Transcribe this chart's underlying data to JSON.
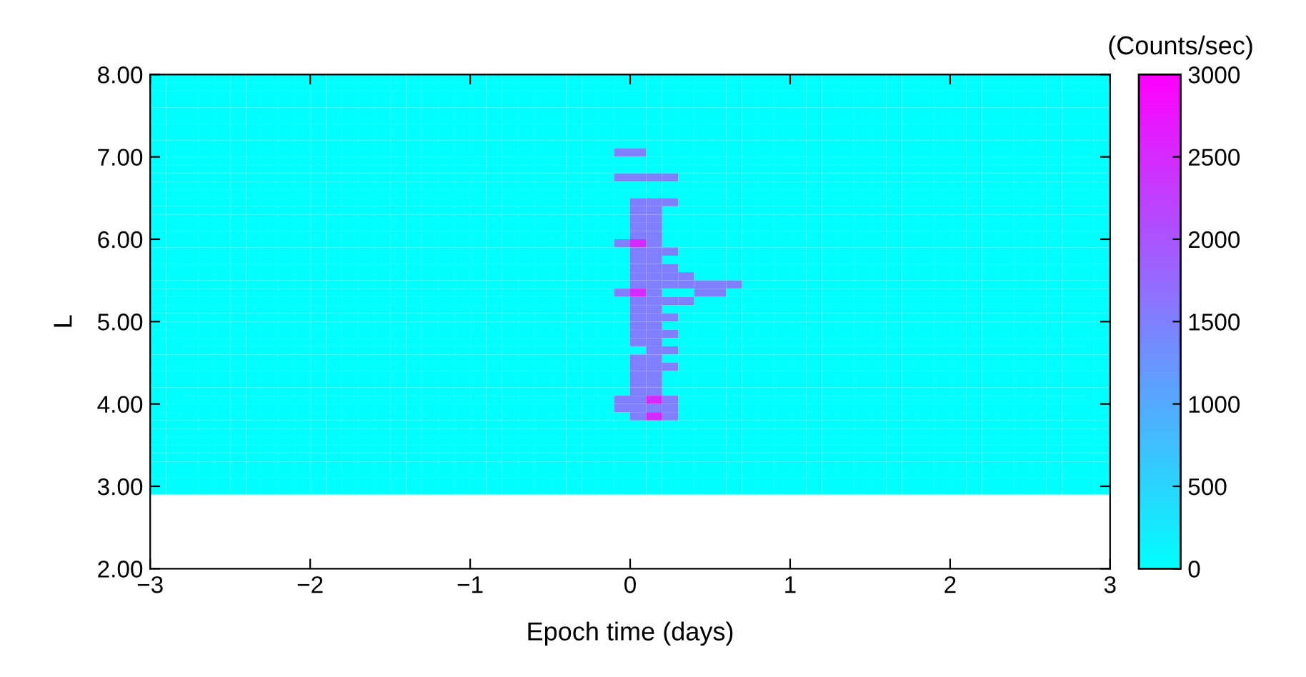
{
  "chart_data": {
    "type": "heatmap",
    "xlabel": "Epoch time (days)",
    "ylabel": "L",
    "clabel": "(Counts/sec)",
    "xlim": [
      -3,
      3
    ],
    "ylim": [
      2,
      8
    ],
    "xticks": [
      {
        "value": -3,
        "label": "−3"
      },
      {
        "value": -2,
        "label": "−2"
      },
      {
        "value": -1,
        "label": "−1"
      },
      0,
      1,
      2,
      3
    ],
    "yticks": [
      {
        "value": 2,
        "label": "2.00"
      },
      {
        "value": 3,
        "label": "3.00"
      },
      {
        "value": 4,
        "label": "4.00"
      },
      {
        "value": 5,
        "label": "5.00"
      },
      {
        "value": 6,
        "label": "6.00"
      },
      {
        "value": 7,
        "label": "7.00"
      },
      {
        "value": 8,
        "label": "8.00"
      }
    ],
    "clim": [
      0,
      3000
    ],
    "cticks": [
      0,
      500,
      1000,
      1500,
      2000,
      2500,
      3000
    ],
    "grid": false,
    "x": [
      -2.95,
      -2.85,
      -2.75,
      -2.65,
      -2.55,
      -2.45,
      -2.35,
      -2.25,
      -2.15,
      -2.05,
      -1.95,
      -1.85,
      -1.75,
      -1.65,
      -1.55,
      -1.45,
      -1.35,
      -1.25,
      -1.15,
      -1.05,
      -0.95,
      -0.85,
      -0.75,
      -0.65,
      -0.55,
      -0.45,
      -0.35,
      -0.25,
      -0.15,
      -0.05,
      0.05,
      0.15,
      0.25,
      0.35,
      0.45,
      0.55,
      0.65,
      0.75,
      0.85,
      0.95,
      1.05,
      1.15,
      1.25,
      1.35,
      1.45,
      1.55,
      1.65,
      1.75,
      1.85,
      1.95,
      2.05,
      2.15,
      2.25,
      2.35,
      2.45,
      2.55,
      2.65,
      2.75,
      2.85,
      2.95
    ],
    "y": [
      7.95,
      7.85,
      7.75,
      7.65,
      7.55,
      7.45,
      7.35,
      7.25,
      7.15,
      7.05,
      6.95,
      6.85,
      6.75,
      6.65,
      6.55,
      6.45,
      6.35,
      6.25,
      6.15,
      6.05,
      5.95,
      5.85,
      5.75,
      5.65,
      5.55,
      5.45,
      5.35,
      5.25,
      5.15,
      5.05,
      4.95,
      4.85,
      4.75,
      4.65,
      4.55,
      4.45,
      4.35,
      4.25,
      4.15,
      4.05,
      3.95,
      3.85,
      3.75,
      3.65,
      3.55,
      3.45,
      3.35,
      3.25,
      3.15,
      3.05,
      2.95
    ],
    "cells": [
      [
        0,
        0,
        0,
        0,
        0,
        0,
        0,
        0,
        0,
        0,
        0,
        0,
        0,
        0,
        0,
        0,
        0,
        0,
        0,
        0,
        0,
        0,
        0,
        0,
        0,
        0,
        0,
        0,
        0,
        0,
        0,
        0,
        0,
        0,
        0,
        0,
        0,
        0,
        0,
        0,
        0,
        0,
        0,
        0,
        0,
        0,
        0,
        0,
        0,
        0,
        0,
        0,
        0,
        0,
        0,
        0,
        0,
        0,
        0,
        0
      ],
      [
        0,
        0,
        0,
        0,
        0,
        0,
        0,
        0,
        0,
        0,
        0,
        0,
        0,
        0,
        0,
        0,
        0,
        0,
        0,
        0,
        0,
        0,
        0,
        0,
        0,
        0,
        0,
        0,
        0,
        0,
        0,
        0,
        0,
        0,
        0,
        0,
        0,
        0,
        0,
        0,
        0,
        0,
        0,
        0,
        0,
        0,
        0,
        0,
        0,
        0,
        0,
        0,
        0,
        0,
        0,
        0,
        0,
        0,
        0,
        0
      ],
      [
        0,
        0,
        0,
        0,
        0,
        0,
        0,
        0,
        0,
        0,
        0,
        0,
        0,
        0,
        0,
        0,
        0,
        0,
        0,
        0,
        0,
        0,
        0,
        0,
        0,
        0,
        0,
        0,
        0,
        0,
        0,
        0,
        0,
        0,
        0,
        0,
        0,
        0,
        0,
        0,
        0,
        0,
        0,
        0,
        0,
        0,
        0,
        0,
        0,
        0,
        0,
        0,
        0,
        0,
        0,
        0,
        0,
        0,
        0,
        0
      ],
      [
        0,
        0,
        0,
        0,
        0,
        0,
        0,
        0,
        0,
        0,
        0,
        0,
        0,
        0,
        0,
        0,
        0,
        0,
        0,
        0,
        0,
        0,
        0,
        0,
        0,
        0,
        0,
        0,
        0,
        0,
        0,
        0,
        0,
        0,
        0,
        0,
        0,
        0,
        0,
        0,
        0,
        0,
        0,
        0,
        0,
        0,
        0,
        0,
        0,
        0,
        0,
        0,
        0,
        0,
        0,
        0,
        0,
        0,
        0,
        0
      ],
      [
        0,
        0,
        0,
        0,
        0,
        0,
        0,
        0,
        0,
        0,
        0,
        0,
        0,
        0,
        0,
        0,
        0,
        0,
        0,
        0,
        0,
        0,
        0,
        0,
        0,
        0,
        0,
        0,
        0,
        0,
        0,
        0,
        0,
        0,
        0,
        0,
        0,
        0,
        0,
        0,
        0,
        0,
        0,
        0,
        0,
        0,
        0,
        0,
        0,
        0,
        0,
        0,
        0,
        0,
        0,
        0,
        0,
        0,
        0,
        0
      ],
      [
        0,
        0,
        0,
        0,
        0,
        0,
        0,
        0,
        0,
        0,
        0,
        0,
        0,
        0,
        0,
        0,
        0,
        0,
        0,
        0,
        0,
        0,
        0,
        0,
        0,
        0,
        0,
        0,
        0,
        0,
        0,
        0,
        0,
        0,
        0,
        0,
        0,
        0,
        0,
        0,
        0,
        0,
        0,
        0,
        0,
        0,
        0,
        0,
        0,
        0,
        0,
        0,
        0,
        0,
        0,
        0,
        0,
        0,
        0,
        0
      ],
      [
        0,
        0,
        0,
        0,
        0,
        0,
        0,
        0,
        0,
        0,
        0,
        0,
        0,
        0,
        0,
        0,
        0,
        0,
        0,
        0,
        0,
        0,
        0,
        0,
        0,
        0,
        0,
        0,
        0,
        0,
        0,
        0,
        0,
        0,
        0,
        0,
        0,
        0,
        0,
        0,
        0,
        0,
        0,
        0,
        0,
        0,
        0,
        0,
        0,
        0,
        0,
        0,
        0,
        0,
        0,
        0,
        0,
        0,
        0,
        0
      ],
      [
        0,
        0,
        0,
        0,
        0,
        0,
        0,
        0,
        0,
        0,
        0,
        0,
        0,
        0,
        0,
        0,
        0,
        0,
        0,
        0,
        0,
        0,
        0,
        0,
        0,
        0,
        0,
        0,
        0,
        0,
        0,
        0,
        0,
        0,
        0,
        0,
        0,
        0,
        0,
        0,
        0,
        0,
        0,
        0,
        0,
        0,
        0,
        0,
        0,
        0,
        0,
        0,
        0,
        0,
        0,
        0,
        0,
        0,
        0,
        0
      ],
      [
        0,
        0,
        0,
        0,
        0,
        0,
        0,
        0,
        0,
        0,
        0,
        0,
        0,
        0,
        0,
        0,
        0,
        0,
        0,
        0,
        0,
        0,
        0,
        0,
        0,
        0,
        0,
        0,
        0,
        0,
        0,
        0,
        0,
        0,
        0,
        0,
        0,
        0,
        0,
        0,
        0,
        0,
        0,
        0,
        0,
        0,
        0,
        0,
        0,
        0,
        0,
        0,
        0,
        0,
        0,
        0,
        0,
        0,
        0,
        0
      ],
      [
        0,
        0,
        0,
        0,
        0,
        0,
        0,
        0,
        0,
        0,
        0,
        0,
        0,
        0,
        0,
        0,
        0,
        0,
        0,
        0,
        0,
        0,
        0,
        0,
        0,
        0,
        0,
        0,
        0,
        1500,
        1500,
        0,
        0,
        0,
        0,
        0,
        0,
        0,
        0,
        0,
        0,
        0,
        0,
        0,
        0,
        0,
        0,
        0,
        0,
        0,
        0,
        0,
        0,
        0,
        0,
        0,
        0,
        0,
        0,
        0
      ],
      [
        0,
        0,
        0,
        0,
        0,
        0,
        0,
        0,
        0,
        0,
        0,
        0,
        0,
        0,
        0,
        0,
        0,
        0,
        0,
        0,
        0,
        0,
        0,
        0,
        0,
        0,
        0,
        0,
        0,
        0,
        0,
        0,
        0,
        0,
        0,
        0,
        0,
        0,
        0,
        0,
        0,
        0,
        0,
        0,
        0,
        0,
        0,
        0,
        0,
        0,
        0,
        0,
        0,
        0,
        0,
        0,
        0,
        0,
        0,
        0
      ],
      [
        0,
        0,
        0,
        0,
        0,
        0,
        0,
        0,
        0,
        0,
        0,
        0,
        0,
        0,
        0,
        0,
        0,
        0,
        0,
        0,
        0,
        0,
        0,
        0,
        0,
        0,
        0,
        0,
        0,
        0,
        0,
        0,
        0,
        0,
        0,
        0,
        0,
        0,
        0,
        0,
        0,
        0,
        0,
        0,
        0,
        0,
        0,
        0,
        0,
        0,
        0,
        0,
        0,
        0,
        0,
        0,
        0,
        0,
        0,
        0
      ],
      [
        0,
        0,
        0,
        0,
        0,
        0,
        0,
        0,
        0,
        0,
        0,
        0,
        0,
        0,
        0,
        0,
        0,
        0,
        0,
        0,
        0,
        0,
        0,
        0,
        0,
        0,
        0,
        0,
        0,
        1500,
        1500,
        1500,
        1500,
        0,
        0,
        0,
        0,
        0,
        0,
        0,
        0,
        0,
        0,
        0,
        0,
        0,
        0,
        0,
        0,
        0,
        0,
        0,
        0,
        0,
        0,
        0,
        0,
        0,
        0,
        0
      ],
      [
        0,
        0,
        0,
        0,
        0,
        0,
        0,
        0,
        0,
        0,
        0,
        0,
        0,
        0,
        0,
        0,
        0,
        0,
        0,
        0,
        0,
        0,
        0,
        0,
        0,
        0,
        0,
        0,
        0,
        0,
        0,
        0,
        0,
        0,
        0,
        0,
        0,
        0,
        0,
        0,
        0,
        0,
        0,
        0,
        0,
        0,
        0,
        0,
        0,
        0,
        0,
        0,
        0,
        0,
        0,
        0,
        0,
        0,
        0,
        0
      ],
      [
        0,
        0,
        0,
        0,
        0,
        0,
        0,
        0,
        0,
        0,
        0,
        0,
        0,
        0,
        0,
        0,
        0,
        0,
        0,
        0,
        0,
        0,
        0,
        0,
        0,
        0,
        0,
        0,
        0,
        0,
        0,
        0,
        0,
        0,
        0,
        0,
        0,
        0,
        0,
        0,
        0,
        0,
        0,
        0,
        0,
        0,
        0,
        0,
        0,
        0,
        0,
        0,
        0,
        0,
        0,
        0,
        0,
        0,
        0,
        0
      ],
      [
        0,
        0,
        0,
        0,
        0,
        0,
        0,
        0,
        0,
        0,
        0,
        0,
        0,
        0,
        0,
        0,
        0,
        0,
        0,
        0,
        0,
        0,
        0,
        0,
        0,
        0,
        0,
        0,
        0,
        0,
        1500,
        1500,
        1500,
        0,
        0,
        0,
        0,
        0,
        0,
        0,
        0,
        0,
        0,
        0,
        0,
        0,
        0,
        0,
        0,
        0,
        0,
        0,
        0,
        0,
        0,
        0,
        0,
        0,
        0,
        0
      ],
      [
        0,
        0,
        0,
        0,
        0,
        0,
        0,
        0,
        0,
        0,
        0,
        0,
        0,
        0,
        0,
        0,
        0,
        0,
        0,
        0,
        0,
        0,
        0,
        0,
        0,
        0,
        0,
        0,
        0,
        0,
        1500,
        1500,
        0,
        0,
        0,
        0,
        0,
        0,
        0,
        0,
        0,
        0,
        0,
        0,
        0,
        0,
        0,
        0,
        0,
        0,
        0,
        0,
        0,
        0,
        0,
        0,
        0,
        0,
        0,
        0
      ],
      [
        0,
        0,
        0,
        0,
        0,
        0,
        0,
        0,
        0,
        0,
        0,
        0,
        0,
        0,
        0,
        0,
        0,
        0,
        0,
        0,
        0,
        0,
        0,
        0,
        0,
        0,
        0,
        0,
        0,
        0,
        1500,
        1500,
        0,
        0,
        0,
        0,
        0,
        0,
        0,
        0,
        0,
        0,
        0,
        0,
        0,
        0,
        0,
        0,
        0,
        0,
        0,
        0,
        0,
        0,
        0,
        0,
        0,
        0,
        0,
        0
      ],
      [
        0,
        0,
        0,
        0,
        0,
        0,
        0,
        0,
        0,
        0,
        0,
        0,
        0,
        0,
        0,
        0,
        0,
        0,
        0,
        0,
        0,
        0,
        0,
        0,
        0,
        0,
        0,
        0,
        0,
        0,
        1500,
        1500,
        0,
        0,
        0,
        0,
        0,
        0,
        0,
        0,
        0,
        0,
        0,
        0,
        0,
        0,
        0,
        0,
        0,
        0,
        0,
        0,
        0,
        0,
        0,
        0,
        0,
        0,
        0,
        0
      ],
      [
        0,
        0,
        0,
        0,
        0,
        0,
        0,
        0,
        0,
        0,
        0,
        0,
        0,
        0,
        0,
        0,
        0,
        0,
        0,
        0,
        0,
        0,
        0,
        0,
        0,
        0,
        0,
        0,
        0,
        0,
        1500,
        1500,
        0,
        0,
        0,
        0,
        0,
        0,
        0,
        0,
        0,
        0,
        0,
        0,
        0,
        0,
        0,
        0,
        0,
        0,
        0,
        0,
        0,
        0,
        0,
        0,
        0,
        0,
        0,
        0
      ],
      [
        0,
        0,
        0,
        0,
        0,
        0,
        0,
        0,
        0,
        0,
        0,
        0,
        0,
        0,
        0,
        0,
        0,
        0,
        0,
        0,
        0,
        0,
        0,
        0,
        0,
        0,
        0,
        0,
        0,
        1500,
        2500,
        1500,
        0,
        0,
        0,
        0,
        0,
        0,
        0,
        0,
        0,
        0,
        0,
        0,
        0,
        0,
        0,
        0,
        0,
        0,
        0,
        0,
        0,
        0,
        0,
        0,
        0,
        0,
        0,
        0
      ],
      [
        0,
        0,
        0,
        0,
        0,
        0,
        0,
        0,
        0,
        0,
        0,
        0,
        0,
        0,
        0,
        0,
        0,
        0,
        0,
        0,
        0,
        0,
        0,
        0,
        0,
        0,
        0,
        0,
        0,
        0,
        1500,
        1500,
        1500,
        0,
        0,
        0,
        0,
        0,
        0,
        0,
        0,
        0,
        0,
        0,
        0,
        0,
        0,
        0,
        0,
        0,
        0,
        0,
        0,
        0,
        0,
        0,
        0,
        0,
        0,
        0
      ],
      [
        0,
        0,
        0,
        0,
        0,
        0,
        0,
        0,
        0,
        0,
        0,
        0,
        0,
        0,
        0,
        0,
        0,
        0,
        0,
        0,
        0,
        0,
        0,
        0,
        0,
        0,
        0,
        0,
        0,
        0,
        1500,
        1500,
        0,
        0,
        0,
        0,
        0,
        0,
        0,
        0,
        0,
        0,
        0,
        0,
        0,
        0,
        0,
        0,
        0,
        0,
        0,
        0,
        0,
        0,
        0,
        0,
        0,
        0,
        0,
        0
      ],
      [
        0,
        0,
        0,
        0,
        0,
        0,
        0,
        0,
        0,
        0,
        0,
        0,
        0,
        0,
        0,
        0,
        0,
        0,
        0,
        0,
        0,
        0,
        0,
        0,
        0,
        0,
        0,
        0,
        0,
        0,
        1500,
        1500,
        1500,
        0,
        0,
        0,
        0,
        0,
        0,
        0,
        0,
        0,
        0,
        0,
        0,
        0,
        0,
        0,
        0,
        0,
        0,
        0,
        0,
        0,
        0,
        0,
        0,
        0,
        0,
        0
      ],
      [
        0,
        0,
        0,
        0,
        0,
        0,
        0,
        0,
        0,
        0,
        0,
        0,
        0,
        0,
        0,
        0,
        0,
        0,
        0,
        0,
        0,
        0,
        0,
        0,
        0,
        0,
        0,
        0,
        0,
        0,
        1500,
        1500,
        1500,
        1500,
        0,
        0,
        0,
        0,
        0,
        0,
        0,
        0,
        0,
        0,
        0,
        0,
        0,
        0,
        0,
        0,
        0,
        0,
        0,
        0,
        0,
        0,
        0,
        0,
        0,
        0
      ],
      [
        0,
        0,
        0,
        0,
        0,
        0,
        0,
        0,
        0,
        0,
        0,
        0,
        0,
        0,
        0,
        0,
        0,
        0,
        0,
        0,
        0,
        0,
        0,
        0,
        0,
        0,
        0,
        0,
        0,
        0,
        1500,
        1500,
        1500,
        1500,
        1500,
        1500,
        1500,
        0,
        0,
        0,
        0,
        0,
        0,
        0,
        0,
        0,
        0,
        0,
        0,
        0,
        0,
        0,
        0,
        0,
        0,
        0,
        0,
        0,
        0,
        0
      ],
      [
        0,
        0,
        0,
        0,
        0,
        0,
        0,
        0,
        0,
        0,
        0,
        0,
        0,
        0,
        0,
        0,
        0,
        0,
        0,
        0,
        0,
        0,
        0,
        0,
        0,
        0,
        0,
        0,
        0,
        1500,
        2500,
        1500,
        0,
        0,
        1500,
        1500,
        0,
        0,
        0,
        0,
        0,
        0,
        0,
        0,
        0,
        0,
        0,
        0,
        0,
        0,
        0,
        0,
        0,
        0,
        0,
        0,
        0,
        0,
        0,
        0
      ],
      [
        0,
        0,
        0,
        0,
        0,
        0,
        0,
        0,
        0,
        0,
        0,
        0,
        0,
        0,
        0,
        0,
        0,
        0,
        0,
        0,
        0,
        0,
        0,
        0,
        0,
        0,
        0,
        0,
        0,
        0,
        1500,
        1500,
        1500,
        1500,
        0,
        0,
        0,
        0,
        0,
        0,
        0,
        0,
        0,
        0,
        0,
        0,
        0,
        0,
        0,
        0,
        0,
        0,
        0,
        0,
        0,
        0,
        0,
        0,
        0,
        0
      ],
      [
        0,
        0,
        0,
        0,
        0,
        0,
        0,
        0,
        0,
        0,
        0,
        0,
        0,
        0,
        0,
        0,
        0,
        0,
        0,
        0,
        0,
        0,
        0,
        0,
        0,
        0,
        0,
        0,
        0,
        0,
        1500,
        1500,
        0,
        0,
        0,
        0,
        0,
        0,
        0,
        0,
        0,
        0,
        0,
        0,
        0,
        0,
        0,
        0,
        0,
        0,
        0,
        0,
        0,
        0,
        0,
        0,
        0,
        0,
        0,
        0
      ],
      [
        0,
        0,
        0,
        0,
        0,
        0,
        0,
        0,
        0,
        0,
        0,
        0,
        0,
        0,
        0,
        0,
        0,
        0,
        0,
        0,
        0,
        0,
        0,
        0,
        0,
        0,
        0,
        0,
        0,
        0,
        1500,
        1500,
        1500,
        0,
        0,
        0,
        0,
        0,
        0,
        0,
        0,
        0,
        0,
        0,
        0,
        0,
        0,
        0,
        0,
        0,
        0,
        0,
        0,
        0,
        0,
        0,
        0,
        0,
        0,
        0
      ],
      [
        0,
        0,
        0,
        0,
        0,
        0,
        0,
        0,
        0,
        0,
        0,
        0,
        0,
        0,
        0,
        0,
        0,
        0,
        0,
        0,
        0,
        0,
        0,
        0,
        0,
        0,
        0,
        0,
        0,
        0,
        1500,
        1500,
        0,
        0,
        0,
        0,
        0,
        0,
        0,
        0,
        0,
        0,
        0,
        0,
        0,
        0,
        0,
        0,
        0,
        0,
        0,
        0,
        0,
        0,
        0,
        0,
        0,
        0,
        0,
        0
      ],
      [
        0,
        0,
        0,
        0,
        0,
        0,
        0,
        0,
        0,
        0,
        0,
        0,
        0,
        0,
        0,
        0,
        0,
        0,
        0,
        0,
        0,
        0,
        0,
        0,
        0,
        0,
        0,
        0,
        0,
        0,
        1500,
        1500,
        1500,
        0,
        0,
        0,
        0,
        0,
        0,
        0,
        0,
        0,
        0,
        0,
        0,
        0,
        0,
        0,
        0,
        0,
        0,
        0,
        0,
        0,
        0,
        0,
        0,
        0,
        0,
        0
      ],
      [
        0,
        0,
        0,
        0,
        0,
        0,
        0,
        0,
        0,
        0,
        0,
        0,
        0,
        0,
        0,
        0,
        0,
        0,
        0,
        0,
        0,
        0,
        0,
        0,
        0,
        0,
        0,
        0,
        0,
        0,
        1500,
        1500,
        0,
        0,
        0,
        0,
        0,
        0,
        0,
        0,
        0,
        0,
        0,
        0,
        0,
        0,
        0,
        0,
        0,
        0,
        0,
        0,
        0,
        0,
        0,
        0,
        0,
        0,
        0,
        0
      ],
      [
        0,
        0,
        0,
        0,
        0,
        0,
        0,
        0,
        0,
        0,
        0,
        0,
        0,
        0,
        0,
        0,
        0,
        0,
        0,
        0,
        0,
        0,
        0,
        0,
        0,
        0,
        0,
        0,
        0,
        0,
        0,
        1500,
        1500,
        0,
        0,
        0,
        0,
        0,
        0,
        0,
        0,
        0,
        0,
        0,
        0,
        0,
        0,
        0,
        0,
        0,
        0,
        0,
        0,
        0,
        0,
        0,
        0,
        0,
        0,
        0
      ],
      [
        0,
        0,
        0,
        0,
        0,
        0,
        0,
        0,
        0,
        0,
        0,
        0,
        0,
        0,
        0,
        0,
        0,
        0,
        0,
        0,
        0,
        0,
        0,
        0,
        0,
        0,
        0,
        0,
        0,
        0,
        1500,
        1500,
        0,
        0,
        0,
        0,
        0,
        0,
        0,
        0,
        0,
        0,
        0,
        0,
        0,
        0,
        0,
        0,
        0,
        0,
        0,
        0,
        0,
        0,
        0,
        0,
        0,
        0,
        0,
        0
      ],
      [
        0,
        0,
        0,
        0,
        0,
        0,
        0,
        0,
        0,
        0,
        0,
        0,
        0,
        0,
        0,
        0,
        0,
        0,
        0,
        0,
        0,
        0,
        0,
        0,
        0,
        0,
        0,
        0,
        0,
        0,
        1500,
        1500,
        1500,
        0,
        0,
        0,
        0,
        0,
        0,
        0,
        0,
        0,
        0,
        0,
        0,
        0,
        0,
        0,
        0,
        0,
        0,
        0,
        0,
        0,
        0,
        0,
        0,
        0,
        0,
        0
      ],
      [
        0,
        0,
        0,
        0,
        0,
        0,
        0,
        0,
        0,
        0,
        0,
        0,
        0,
        0,
        0,
        0,
        0,
        0,
        0,
        0,
        0,
        0,
        0,
        0,
        0,
        0,
        0,
        0,
        0,
        0,
        1500,
        1500,
        0,
        0,
        0,
        0,
        0,
        0,
        0,
        0,
        0,
        0,
        0,
        0,
        0,
        0,
        0,
        0,
        0,
        0,
        0,
        0,
        0,
        0,
        0,
        0,
        0,
        0,
        0,
        0
      ],
      [
        0,
        0,
        0,
        0,
        0,
        0,
        0,
        0,
        0,
        0,
        0,
        0,
        0,
        0,
        0,
        0,
        0,
        0,
        0,
        0,
        0,
        0,
        0,
        0,
        0,
        0,
        0,
        0,
        0,
        0,
        1500,
        1500,
        0,
        0,
        0,
        0,
        0,
        0,
        0,
        0,
        0,
        0,
        0,
        0,
        0,
        0,
        0,
        0,
        0,
        0,
        0,
        0,
        0,
        0,
        0,
        0,
        0,
        0,
        0,
        0
      ],
      [
        0,
        0,
        0,
        0,
        0,
        0,
        0,
        0,
        0,
        0,
        0,
        0,
        0,
        0,
        0,
        0,
        0,
        0,
        0,
        0,
        0,
        0,
        0,
        0,
        0,
        0,
        0,
        0,
        0,
        0,
        1500,
        1500,
        0,
        0,
        0,
        0,
        0,
        0,
        0,
        0,
        0,
        0,
        0,
        0,
        0,
        0,
        0,
        0,
        0,
        0,
        0,
        0,
        0,
        0,
        0,
        0,
        0,
        0,
        0,
        0
      ],
      [
        0,
        0,
        0,
        0,
        0,
        0,
        0,
        0,
        0,
        0,
        0,
        0,
        0,
        0,
        0,
        0,
        0,
        0,
        0,
        0,
        0,
        0,
        0,
        0,
        0,
        0,
        0,
        0,
        0,
        1500,
        1500,
        2500,
        1500,
        0,
        0,
        0,
        0,
        0,
        0,
        0,
        0,
        0,
        0,
        0,
        0,
        0,
        0,
        0,
        0,
        0,
        0,
        0,
        0,
        0,
        0,
        0,
        0,
        0,
        0,
        0
      ],
      [
        0,
        0,
        0,
        0,
        0,
        0,
        0,
        0,
        0,
        0,
        0,
        0,
        0,
        0,
        0,
        0,
        0,
        0,
        0,
        0,
        0,
        0,
        0,
        0,
        0,
        0,
        0,
        0,
        0,
        1500,
        1500,
        1500,
        1500,
        0,
        0,
        0,
        0,
        0,
        0,
        0,
        0,
        0,
        0,
        0,
        0,
        0,
        0,
        0,
        0,
        0,
        0,
        0,
        0,
        0,
        0,
        0,
        0,
        0,
        0,
        0
      ],
      [
        0,
        0,
        0,
        0,
        0,
        0,
        0,
        0,
        0,
        0,
        0,
        0,
        0,
        0,
        0,
        0,
        0,
        0,
        0,
        0,
        0,
        0,
        0,
        0,
        0,
        0,
        0,
        0,
        0,
        0,
        1500,
        2500,
        1500,
        0,
        0,
        0,
        0,
        0,
        0,
        0,
        0,
        0,
        0,
        0,
        0,
        0,
        0,
        0,
        0,
        0,
        0,
        0,
        0,
        0,
        0,
        0,
        0,
        0,
        0,
        0
      ],
      [
        0,
        0,
        0,
        0,
        0,
        0,
        0,
        0,
        0,
        0,
        0,
        0,
        0,
        0,
        0,
        0,
        0,
        0,
        0,
        0,
        0,
        0,
        0,
        0,
        0,
        0,
        0,
        0,
        0,
        0,
        0,
        0,
        0,
        0,
        0,
        0,
        0,
        0,
        0,
        0,
        0,
        0,
        0,
        0,
        0,
        0,
        0,
        0,
        0,
        0,
        0,
        0,
        0,
        0,
        0,
        0,
        0,
        0,
        0,
        0
      ],
      [
        0,
        0,
        0,
        0,
        0,
        0,
        0,
        0,
        0,
        0,
        0,
        0,
        0,
        0,
        0,
        0,
        0,
        0,
        0,
        0,
        0,
        0,
        0,
        0,
        0,
        0,
        0,
        0,
        0,
        0,
        0,
        0,
        0,
        0,
        0,
        0,
        0,
        0,
        0,
        0,
        0,
        0,
        0,
        0,
        0,
        0,
        0,
        0,
        0,
        0,
        0,
        0,
        0,
        0,
        0,
        0,
        0,
        0,
        0,
        0
      ],
      [
        0,
        0,
        0,
        0,
        0,
        0,
        0,
        0,
        0,
        0,
        0,
        0,
        0,
        0,
        0,
        0,
        0,
        0,
        0,
        0,
        0,
        0,
        0,
        0,
        0,
        0,
        0,
        0,
        0,
        0,
        0,
        0,
        0,
        0,
        0,
        0,
        0,
        0,
        0,
        0,
        0,
        0,
        0,
        0,
        0,
        0,
        0,
        0,
        0,
        0,
        0,
        0,
        0,
        0,
        0,
        0,
        0,
        0,
        0,
        0
      ],
      [
        0,
        0,
        0,
        0,
        0,
        0,
        0,
        0,
        0,
        0,
        0,
        0,
        0,
        0,
        0,
        0,
        0,
        0,
        0,
        0,
        0,
        0,
        0,
        0,
        0,
        0,
        0,
        0,
        0,
        0,
        0,
        0,
        0,
        0,
        0,
        0,
        0,
        0,
        0,
        0,
        0,
        0,
        0,
        0,
        0,
        0,
        0,
        0,
        0,
        0,
        0,
        0,
        0,
        0,
        0,
        0,
        0,
        0,
        0,
        0
      ],
      [
        0,
        0,
        0,
        0,
        0,
        0,
        0,
        0,
        0,
        0,
        0,
        0,
        0,
        0,
        0,
        0,
        0,
        0,
        0,
        0,
        0,
        0,
        0,
        0,
        0,
        0,
        0,
        0,
        0,
        0,
        0,
        0,
        0,
        0,
        0,
        0,
        0,
        0,
        0,
        0,
        0,
        0,
        0,
        0,
        0,
        0,
        0,
        0,
        0,
        0,
        0,
        0,
        0,
        0,
        0,
        0,
        0,
        0,
        0,
        0
      ],
      [
        0,
        0,
        0,
        0,
        0,
        0,
        0,
        0,
        0,
        0,
        0,
        0,
        0,
        0,
        0,
        0,
        0,
        0,
        0,
        0,
        0,
        0,
        0,
        0,
        0,
        0,
        0,
        0,
        0,
        0,
        0,
        0,
        0,
        0,
        0,
        0,
        0,
        0,
        0,
        0,
        0,
        0,
        0,
        0,
        0,
        0,
        0,
        0,
        0,
        0,
        0,
        0,
        0,
        0,
        0,
        0,
        0,
        0,
        0,
        0
      ],
      [
        0,
        0,
        0,
        0,
        0,
        0,
        0,
        0,
        0,
        0,
        0,
        0,
        0,
        0,
        0,
        0,
        0,
        0,
        0,
        0,
        0,
        0,
        0,
        0,
        0,
        0,
        0,
        0,
        0,
        0,
        0,
        0,
        0,
        0,
        0,
        0,
        0,
        0,
        0,
        0,
        0,
        0,
        0,
        0,
        0,
        0,
        0,
        0,
        0,
        0,
        0,
        0,
        0,
        0,
        0,
        0,
        0,
        0,
        0,
        0
      ],
      [
        0,
        0,
        0,
        0,
        0,
        0,
        0,
        0,
        0,
        0,
        0,
        0,
        0,
        0,
        0,
        0,
        0,
        0,
        0,
        0,
        0,
        0,
        0,
        0,
        0,
        0,
        0,
        0,
        0,
        0,
        0,
        0,
        0,
        0,
        0,
        0,
        0,
        0,
        0,
        0,
        0,
        0,
        0,
        0,
        0,
        0,
        0,
        0,
        0,
        0,
        0,
        0,
        0,
        0,
        0,
        0,
        0,
        0,
        0,
        0
      ],
      [
        0,
        0,
        0,
        0,
        0,
        0,
        0,
        0,
        0,
        0,
        0,
        0,
        0,
        0,
        0,
        0,
        0,
        0,
        0,
        0,
        0,
        0,
        0,
        0,
        0,
        0,
        0,
        0,
        0,
        0,
        0,
        0,
        0,
        0,
        0,
        0,
        0,
        0,
        0,
        0,
        0,
        0,
        0,
        0,
        0,
        0,
        0,
        0,
        0,
        0,
        0,
        0,
        0,
        0,
        0,
        0,
        0,
        0,
        0,
        0
      ]
    ]
  }
}
